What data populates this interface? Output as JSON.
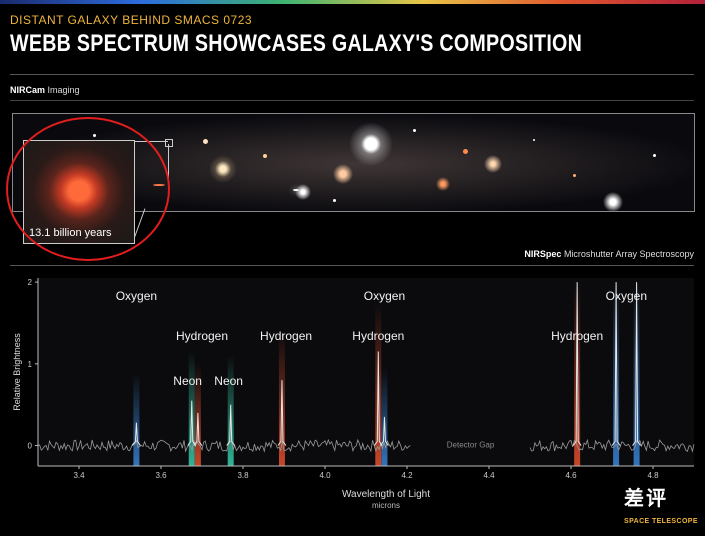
{
  "header": {
    "subtitle": "DISTANT GALAXY BEHIND SMACS 0723",
    "title": "WEBB SPECTRUM SHOWCASES GALAXY'S COMPOSITION"
  },
  "imaging": {
    "instrument": "NIRCam",
    "label": "Imaging",
    "inset_label": "13.1 billion years"
  },
  "spectroscopy": {
    "instrument": "NIRSpec",
    "label": "Microshutter Array Spectroscopy"
  },
  "watermark": {
    "text": "差评",
    "sub": "SPACE TELESCOPE"
  },
  "colors": {
    "hydrogen": "#e8502e",
    "oxygen": "#3a86d9",
    "neon": "#37d3b0",
    "accent": "#f0b53a",
    "highlight": "#e21d1d"
  },
  "chart_data": {
    "type": "line",
    "xlabel": "Wavelength of Light",
    "xunit": "microns",
    "ylabel": "Relative Brightness",
    "xlim": [
      3.3,
      4.9
    ],
    "ylim": [
      -0.25,
      2.05
    ],
    "x_ticks": [
      "3.4",
      "3.6",
      "3.8",
      "4.0",
      "4.2",
      "4.4",
      "4.6",
      "4.8"
    ],
    "y_ticks": [
      "0",
      "1",
      "2"
    ],
    "detector_gap": {
      "label": "Detector Gap",
      "x_range": [
        4.21,
        4.5
      ]
    },
    "emission_lines": [
      {
        "element": "Oxygen",
        "x": 3.54,
        "peak": 0.28,
        "color": "oxygen"
      },
      {
        "element": "Neon",
        "x": 3.675,
        "peak": 0.55,
        "color": "neon"
      },
      {
        "element": "Hydrogen",
        "x": 3.69,
        "peak": 0.4,
        "color": "hydrogen"
      },
      {
        "element": "Neon",
        "x": 3.77,
        "peak": 0.5,
        "color": "neon"
      },
      {
        "element": "Hydrogen",
        "x": 3.895,
        "peak": 0.8,
        "color": "hydrogen"
      },
      {
        "element": "Hydrogen",
        "x": 4.13,
        "peak": 1.15,
        "color": "hydrogen"
      },
      {
        "element": "Oxygen",
        "x": 4.145,
        "peak": 0.35,
        "color": "oxygen"
      },
      {
        "element": "Hydrogen",
        "x": 4.615,
        "peak": 2.0,
        "color": "hydrogen"
      },
      {
        "element": "Oxygen",
        "x": 4.71,
        "peak": 2.0,
        "color": "oxygen"
      },
      {
        "element": "Oxygen",
        "x": 4.76,
        "peak": 2.0,
        "color": "oxygen"
      }
    ],
    "labels": [
      {
        "text": "Oxygen",
        "x": 3.54
      },
      {
        "text": "Hydrogen",
        "x": 3.7
      },
      {
        "text": "Neon",
        "x": 3.665
      },
      {
        "text": "Neon",
        "x": 3.765
      },
      {
        "text": "Hydrogen",
        "x": 3.905
      },
      {
        "text": "Oxygen",
        "x": 4.145
      },
      {
        "text": "Hydrogen",
        "x": 4.13
      },
      {
        "text": "Hydrogen",
        "x": 4.615
      },
      {
        "text": "Oxygen",
        "x": 4.735
      }
    ]
  }
}
